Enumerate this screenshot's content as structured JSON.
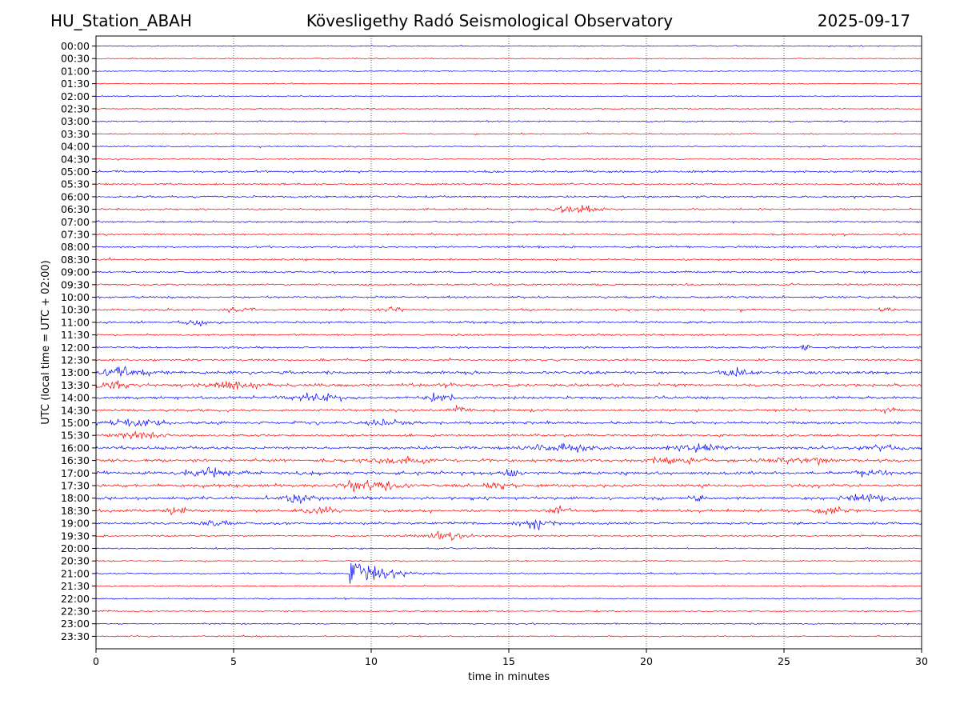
{
  "header": {
    "station": "HU_Station_ABAH",
    "observatory": "Kövesligethy Radó Seismological Observatory",
    "date": "2025-09-17"
  },
  "chart_data": {
    "type": "line",
    "title": "Kövesligethy Radó Seismological Observatory",
    "xlabel": "time in minutes",
    "ylabel": "UTC (local time = UTC + 02:00)",
    "xlim": [
      0,
      30
    ],
    "xticks": [
      "0",
      "5",
      "10",
      "15",
      "20",
      "25",
      "30"
    ],
    "grid": "vertical dotted lines at 5-minute intervals",
    "colors": {
      "even_rows": "#0000ff",
      "odd_rows": "#ff0000"
    },
    "rows": [
      "00:00",
      "00:30",
      "01:00",
      "01:30",
      "02:00",
      "02:30",
      "03:00",
      "03:30",
      "04:00",
      "04:30",
      "05:00",
      "05:30",
      "06:00",
      "06:30",
      "07:00",
      "07:30",
      "08:00",
      "08:30",
      "09:00",
      "09:30",
      "10:00",
      "10:30",
      "11:00",
      "11:30",
      "12:00",
      "12:30",
      "13:00",
      "13:30",
      "14:00",
      "14:30",
      "15:00",
      "15:30",
      "16:00",
      "16:30",
      "17:00",
      "17:30",
      "18:00",
      "18:30",
      "19:00",
      "19:30",
      "20:00",
      "20:30",
      "21:00",
      "21:30",
      "22:00",
      "22:30",
      "23:00",
      "23:30"
    ],
    "noise_level": [
      0.5,
      0.5,
      0.5,
      0.5,
      0.5,
      0.5,
      0.6,
      0.6,
      0.6,
      0.6,
      0.9,
      0.8,
      0.9,
      0.8,
      0.8,
      0.8,
      0.9,
      0.8,
      0.9,
      0.9,
      0.9,
      0.9,
      1.0,
      0.8,
      0.9,
      0.9,
      1.4,
      1.3,
      1.2,
      1.1,
      1.2,
      1.0,
      1.3,
      1.3,
      1.4,
      1.3,
      1.4,
      1.2,
      1.1,
      0.8,
      0.6,
      0.6,
      0.7,
      0.6,
      0.6,
      0.6,
      0.6,
      0.6
    ],
    "events": [
      {
        "row": "06:30",
        "minute": 17.5,
        "amplitude": 3.5,
        "duration": 1.2
      },
      {
        "row": "10:30",
        "minute": 5.2,
        "amplitude": 2.0,
        "duration": 0.8
      },
      {
        "row": "10:30",
        "minute": 10.7,
        "amplitude": 2.0,
        "duration": 0.6
      },
      {
        "row": "10:30",
        "minute": 28.7,
        "amplitude": 2.5,
        "duration": 0.4
      },
      {
        "row": "11:00",
        "minute": 3.5,
        "amplitude": 2.2,
        "duration": 0.8
      },
      {
        "row": "12:00",
        "minute": 25.8,
        "amplitude": 2.5,
        "duration": 0.3
      },
      {
        "row": "13:00",
        "minute": 1.0,
        "amplitude": 2.5,
        "duration": 1.5
      },
      {
        "row": "13:00",
        "minute": 23.2,
        "amplitude": 3.0,
        "duration": 0.8
      },
      {
        "row": "13:30",
        "minute": 0.6,
        "amplitude": 3.5,
        "duration": 1.0
      },
      {
        "row": "13:30",
        "minute": 5.0,
        "amplitude": 2.5,
        "duration": 1.5
      },
      {
        "row": "13:30",
        "minute": 12.6,
        "amplitude": 2.5,
        "duration": 0.6
      },
      {
        "row": "14:00",
        "minute": 8.0,
        "amplitude": 3.0,
        "duration": 1.5
      },
      {
        "row": "14:00",
        "minute": 12.5,
        "amplitude": 2.5,
        "duration": 0.8
      },
      {
        "row": "14:30",
        "minute": 13.2,
        "amplitude": 2.2,
        "duration": 0.4
      },
      {
        "row": "14:30",
        "minute": 28.8,
        "amplitude": 2.2,
        "duration": 0.6
      },
      {
        "row": "15:00",
        "minute": 1.6,
        "amplitude": 3.0,
        "duration": 1.5
      },
      {
        "row": "15:00",
        "minute": 10.6,
        "amplitude": 2.5,
        "duration": 1.2
      },
      {
        "row": "15:30",
        "minute": 1.6,
        "amplitude": 3.0,
        "duration": 1.4
      },
      {
        "row": "16:00",
        "minute": 17.0,
        "amplitude": 2.5,
        "duration": 2.0
      },
      {
        "row": "16:00",
        "minute": 22.0,
        "amplitude": 2.5,
        "duration": 2.0
      },
      {
        "row": "16:00",
        "minute": 28.5,
        "amplitude": 2.5,
        "duration": 1.0
      },
      {
        "row": "16:30",
        "minute": 11.0,
        "amplitude": 2.5,
        "duration": 2.0
      },
      {
        "row": "16:30",
        "minute": 21.0,
        "amplitude": 2.5,
        "duration": 1.5
      },
      {
        "row": "16:30",
        "minute": 25.5,
        "amplitude": 2.5,
        "duration": 2.0
      },
      {
        "row": "17:00",
        "minute": 4.2,
        "amplitude": 2.5,
        "duration": 1.5
      },
      {
        "row": "17:00",
        "minute": 15.1,
        "amplitude": 3.0,
        "duration": 0.5
      },
      {
        "row": "17:00",
        "minute": 28.1,
        "amplitude": 3.0,
        "duration": 1.0
      },
      {
        "row": "17:30",
        "minute": 9.9,
        "amplitude": 4.0,
        "duration": 1.6
      },
      {
        "row": "17:30",
        "minute": 14.5,
        "amplitude": 2.5,
        "duration": 0.8
      },
      {
        "row": "18:00",
        "minute": 7.3,
        "amplitude": 2.8,
        "duration": 1.0
      },
      {
        "row": "18:00",
        "minute": 21.8,
        "amplitude": 2.5,
        "duration": 0.5
      },
      {
        "row": "18:00",
        "minute": 28.0,
        "amplitude": 2.5,
        "duration": 1.5
      },
      {
        "row": "18:30",
        "minute": 2.9,
        "amplitude": 3.0,
        "duration": 0.6
      },
      {
        "row": "18:30",
        "minute": 8.2,
        "amplitude": 3.0,
        "duration": 1.0
      },
      {
        "row": "18:30",
        "minute": 16.9,
        "amplitude": 2.8,
        "duration": 0.6
      },
      {
        "row": "18:30",
        "minute": 26.8,
        "amplitude": 2.5,
        "duration": 1.0
      },
      {
        "row": "19:00",
        "minute": 4.3,
        "amplitude": 2.5,
        "duration": 1.2
      },
      {
        "row": "19:00",
        "minute": 16.0,
        "amplitude": 3.5,
        "duration": 1.2
      },
      {
        "row": "19:30",
        "minute": 12.6,
        "amplitude": 3.0,
        "duration": 1.4
      },
      {
        "row": "21:00",
        "minute": 9.25,
        "amplitude": 13.0,
        "duration": 3.5
      }
    ]
  }
}
